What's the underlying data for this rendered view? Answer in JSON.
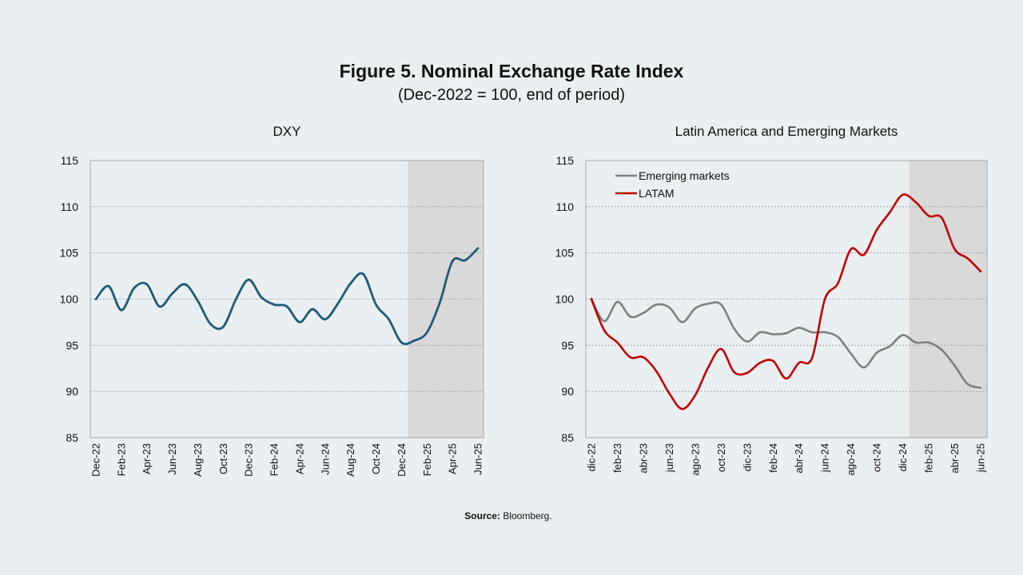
{
  "figure": {
    "title": "Figure 5. Nominal Exchange Rate Index",
    "subtitle": "(Dec-2022 = 100, end of period)",
    "source_label": "Source:",
    "source_text": " Bloomberg."
  },
  "chart_data": [
    {
      "type": "line",
      "title": "DXY",
      "ylim": [
        85,
        115
      ],
      "yticks": [
        85,
        90,
        95,
        100,
        105,
        110,
        115
      ],
      "grid": true,
      "shaded_range": [
        "Jan-25",
        "Jun-25"
      ],
      "x": [
        "Dec-22",
        "Jan-23",
        "Feb-23",
        "Mar-23",
        "Apr-23",
        "May-23",
        "Jun-23",
        "Jul-23",
        "Aug-23",
        "Sep-23",
        "Oct-23",
        "Nov-23",
        "Dec-23",
        "Jan-24",
        "Feb-24",
        "Mar-24",
        "Apr-24",
        "May-24",
        "Jun-24",
        "Jul-24",
        "Aug-24",
        "Sep-24",
        "Oct-24",
        "Nov-24",
        "Dec-24",
        "Jan-25",
        "Feb-25",
        "Mar-25",
        "Apr-25",
        "May-25",
        "Jun-25"
      ],
      "tick_labels": [
        "Dec-22",
        "Feb-23",
        "Apr-23",
        "Jun-23",
        "Aug-23",
        "Oct-23",
        "Dec-23",
        "Feb-24",
        "Apr-24",
        "Jun-24",
        "Aug-24",
        "Oct-24",
        "Dec-24",
        "Feb-25",
        "Apr-25",
        "Jun-25"
      ],
      "series": [
        {
          "color": "#1f5a7a",
          "values": [
            100.0,
            101.4,
            98.8,
            101.2,
            101.6,
            99.2,
            100.6,
            101.6,
            99.8,
            97.3,
            97.0,
            100.0,
            102.1,
            100.2,
            99.4,
            99.2,
            97.5,
            98.9,
            97.8,
            99.5,
            101.7,
            102.7,
            99.4,
            97.8,
            95.3,
            95.5,
            96.4,
            99.6,
            104.1,
            104.2,
            105.5
          ]
        }
      ]
    },
    {
      "type": "line",
      "title": "Latin America and Emerging Markets",
      "ylim": [
        85,
        115
      ],
      "yticks": [
        85,
        90,
        95,
        100,
        105,
        110,
        115
      ],
      "grid": true,
      "legend_position": "top-left",
      "shaded_range": [
        "ene-25",
        "jun-25"
      ],
      "x": [
        "dic-22",
        "ene-23",
        "feb-23",
        "mar-23",
        "abr-23",
        "may-23",
        "jun-23",
        "jul-23",
        "ago-23",
        "sep-23",
        "oct-23",
        "nov-23",
        "dic-23",
        "ene-24",
        "feb-24",
        "mar-24",
        "abr-24",
        "may-24",
        "jun-24",
        "jul-24",
        "ago-24",
        "sep-24",
        "oct-24",
        "nov-24",
        "dic-24",
        "ene-25",
        "feb-25",
        "mar-25",
        "abr-25",
        "may-25",
        "jun-25"
      ],
      "tick_labels": [
        "dic-22",
        "feb-23",
        "abr-23",
        "jun-23",
        "ago-23",
        "oct-23",
        "dic-23",
        "feb-24",
        "abr-24",
        "jun-24",
        "ago-24",
        "oct-24",
        "dic-24",
        "feb-25",
        "abr-25",
        "jun-25"
      ],
      "series": [
        {
          "name": "Emerging markets",
          "color": "#808080",
          "values": [
            100.0,
            97.6,
            99.7,
            98.1,
            98.5,
            99.4,
            99.1,
            97.5,
            99.0,
            99.5,
            99.4,
            96.8,
            95.4,
            96.4,
            96.2,
            96.3,
            96.9,
            96.4,
            96.4,
            95.9,
            94.1,
            92.6,
            94.2,
            94.9,
            96.1,
            95.3,
            95.3,
            94.5,
            92.8,
            90.8,
            90.4
          ]
        },
        {
          "name": "LATAM",
          "color": "#c00000",
          "values": [
            100.0,
            96.6,
            95.3,
            93.7,
            93.7,
            92.2,
            89.8,
            88.1,
            89.6,
            92.6,
            94.6,
            92.1,
            92.0,
            93.1,
            93.3,
            91.4,
            93.1,
            93.6,
            100.0,
            101.7,
            105.4,
            104.8,
            107.5,
            109.4,
            111.3,
            110.5,
            109.0,
            108.8,
            105.4,
            104.4,
            103.0
          ]
        }
      ]
    }
  ]
}
